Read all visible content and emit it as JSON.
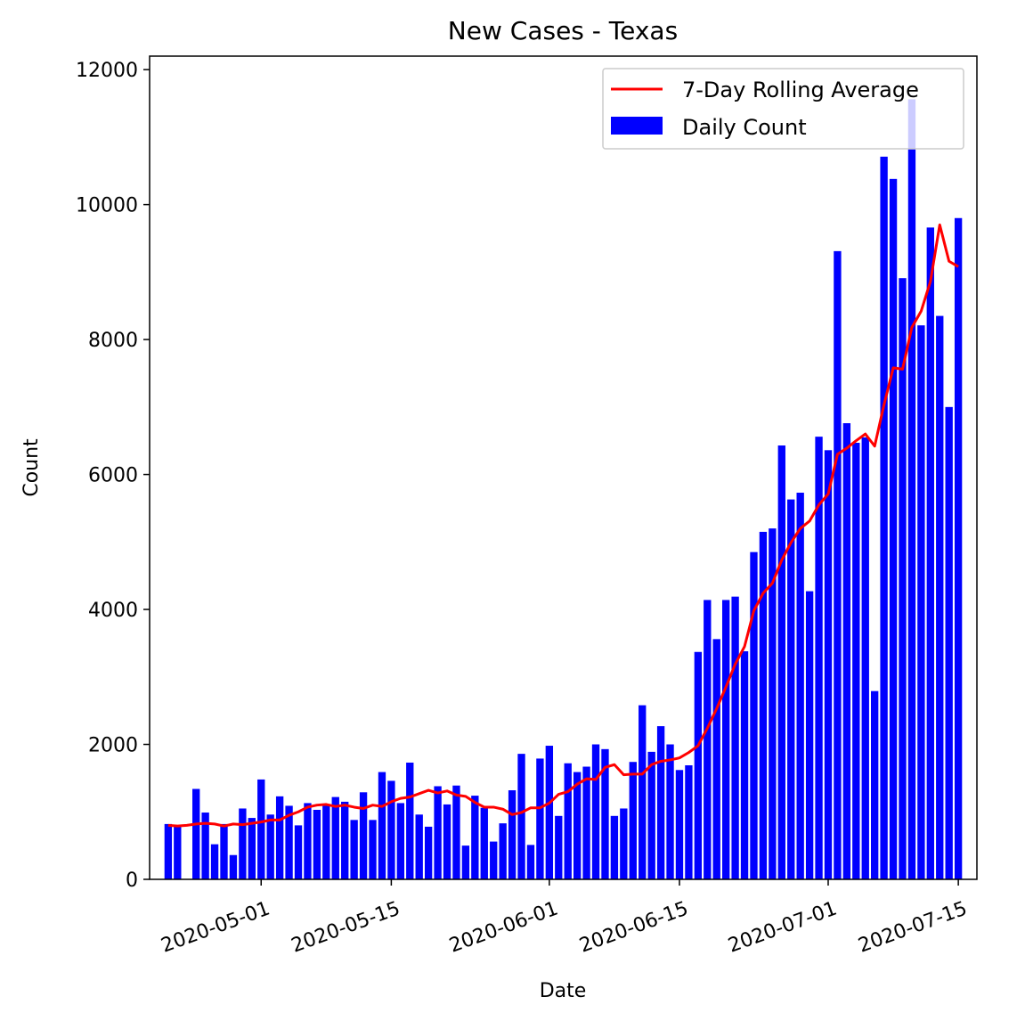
{
  "chart_data": {
    "type": "bar",
    "title": "New Cases - Texas",
    "xlabel": "Date",
    "ylabel": "Count",
    "ylim": [
      0,
      12200
    ],
    "xlim": [
      "2020-04-19",
      "2020-07-17"
    ],
    "yticks": [
      0,
      2000,
      4000,
      6000,
      8000,
      10000,
      12000
    ],
    "xticks": [
      "2020-05-01",
      "2020-05-15",
      "2020-06-01",
      "2020-06-15",
      "2020-07-01",
      "2020-07-15"
    ],
    "grid": false,
    "legend_position": "top-right",
    "x_start": "2020-04-21",
    "series": [
      {
        "name": "Daily Count",
        "type": "bar",
        "color": "#0000ff",
        "values": [
          820,
          780,
          0,
          1340,
          990,
          520,
          820,
          360,
          1050,
          910,
          1480,
          960,
          1230,
          1090,
          800,
          1130,
          1030,
          1110,
          1220,
          1150,
          880,
          1290,
          880,
          1590,
          1460,
          1130,
          1730,
          960,
          780,
          1380,
          1110,
          1390,
          500,
          1240,
          1060,
          560,
          830,
          1320,
          1860,
          510,
          1790,
          1980,
          940,
          1720,
          1590,
          1670,
          2000,
          1930,
          940,
          1050,
          1740,
          2580,
          1890,
          2270,
          2000,
          1620,
          1690,
          3370,
          4140,
          3560,
          4140,
          4190,
          3380,
          4850,
          5150,
          5200,
          6430,
          5630,
          5730,
          4270,
          6560,
          6360,
          9310,
          6760,
          6470,
          6550,
          2790,
          10710,
          10380,
          8910,
          11560,
          8210,
          9660,
          8350,
          7000,
          9800
        ]
      },
      {
        "name": "7-Day Rolling Average",
        "type": "line",
        "color": "#ff0000",
        "values": [
          800,
          790,
          800,
          820,
          830,
          820,
          790,
          820,
          810,
          830,
          850,
          880,
          880,
          950,
          1000,
          1070,
          1100,
          1110,
          1080,
          1100,
          1070,
          1050,
          1100,
          1080,
          1150,
          1200,
          1220,
          1270,
          1320,
          1280,
          1310,
          1250,
          1230,
          1140,
          1070,
          1070,
          1040,
          960,
          990,
          1060,
          1060,
          1130,
          1260,
          1300,
          1410,
          1490,
          1480,
          1660,
          1700,
          1550,
          1560,
          1560,
          1700,
          1750,
          1770,
          1800,
          1880,
          1980,
          2240,
          2530,
          2850,
          3190,
          3450,
          3980,
          4240,
          4390,
          4730,
          4990,
          5200,
          5310,
          5550,
          5710,
          6300,
          6390,
          6500,
          6600,
          6420,
          7030,
          7580,
          7560,
          8180,
          8420,
          8860,
          9700,
          9160,
          9080
        ]
      }
    ]
  }
}
